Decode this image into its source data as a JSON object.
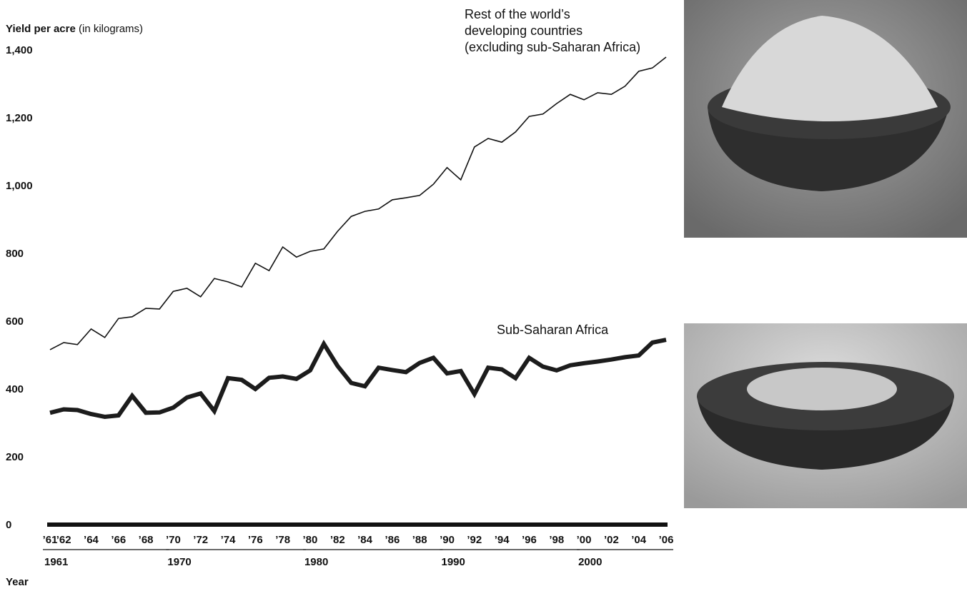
{
  "chart_data": {
    "type": "line",
    "ylabel": {
      "bold": "Yield per acre",
      "note": "(in kilograms)"
    },
    "xlabel": "Year",
    "x": [
      1961,
      1962,
      1963,
      1964,
      1965,
      1966,
      1967,
      1968,
      1969,
      1970,
      1971,
      1972,
      1973,
      1974,
      1975,
      1976,
      1977,
      1978,
      1979,
      1980,
      1981,
      1982,
      1983,
      1984,
      1985,
      1986,
      1987,
      1988,
      1989,
      1990,
      1991,
      1992,
      1993,
      1994,
      1995,
      1996,
      1997,
      1998,
      1999,
      2000,
      2001,
      2002,
      2003,
      2004,
      2005,
      2006
    ],
    "series": [
      {
        "name": [
          "Rest of the world’s",
          "developing countries",
          "(excluding sub-Saharan Africa)"
        ],
        "color": "#111111",
        "width": 1.6,
        "values": [
          516,
          537,
          531,
          577,
          552,
          608,
          613,
          638,
          636,
          688,
          697,
          672,
          726,
          716,
          701,
          771,
          749,
          819,
          789,
          806,
          813,
          865,
          909,
          924,
          931,
          958,
          964,
          971,
          1004,
          1053,
          1017,
          1114,
          1139,
          1128,
          1158,
          1204,
          1211,
          1242,
          1269,
          1253,
          1274,
          1269,
          1293,
          1337,
          1347,
          1379
        ]
      },
      {
        "name": "Sub-Saharan Africa",
        "color": "#1c1c1c",
        "width": 6,
        "values": [
          330,
          340,
          338,
          326,
          318,
          322,
          380,
          330,
          331,
          345,
          375,
          387,
          335,
          432,
          427,
          400,
          433,
          437,
          430,
          455,
          533,
          468,
          418,
          408,
          463,
          456,
          450,
          477,
          492,
          446,
          453,
          385,
          463,
          458,
          432,
          492,
          466,
          455,
          470,
          476,
          481,
          487,
          494,
          499,
          537,
          545
        ]
      }
    ],
    "xlim": [
      1961,
      2006
    ],
    "xticks": [
      {
        "value": 1961,
        "label": "’61"
      },
      {
        "value": 1962,
        "label": "’62"
      },
      {
        "value": 1964,
        "label": "’64"
      },
      {
        "value": 1966,
        "label": "’66"
      },
      {
        "value": 1968,
        "label": "’68"
      },
      {
        "value": 1970,
        "label": "’70"
      },
      {
        "value": 1972,
        "label": "’72"
      },
      {
        "value": 1974,
        "label": "’74"
      },
      {
        "value": 1976,
        "label": "’76"
      },
      {
        "value": 1978,
        "label": "’78"
      },
      {
        "value": 1980,
        "label": "’80"
      },
      {
        "value": 1982,
        "label": "’82"
      },
      {
        "value": 1984,
        "label": "’84"
      },
      {
        "value": 1986,
        "label": "’86"
      },
      {
        "value": 1988,
        "label": "’88"
      },
      {
        "value": 1990,
        "label": "’90"
      },
      {
        "value": 1992,
        "label": "’92"
      },
      {
        "value": 1994,
        "label": "’94"
      },
      {
        "value": 1996,
        "label": "’96"
      },
      {
        "value": 1998,
        "label": "’98"
      },
      {
        "value": 2000,
        "label": "’00"
      },
      {
        "value": 2002,
        "label": "’02"
      },
      {
        "value": 2004,
        "label": "’04"
      },
      {
        "value": 2006,
        "label": "’06"
      }
    ],
    "decades": [
      1961,
      1970,
      1980,
      1990,
      2000
    ],
    "ylim": [
      0,
      1400
    ],
    "yticks": [
      0,
      200,
      400,
      600,
      800,
      {
        "value": 1000,
        "label": "1,000"
      },
      {
        "value": 1200,
        "label": "1,200"
      },
      {
        "value": 1400,
        "label": "1,400"
      }
    ]
  }
}
